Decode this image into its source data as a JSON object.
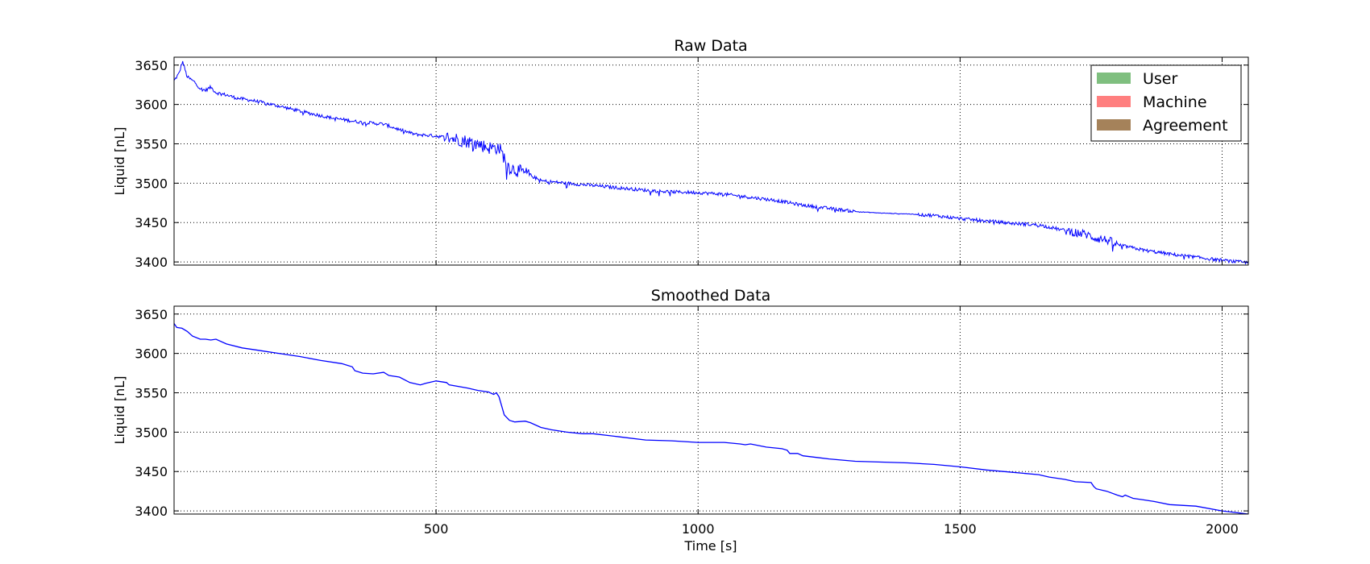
{
  "chart_data": [
    {
      "type": "line",
      "title": "Raw Data",
      "xlabel": "",
      "ylabel": "Liquid [nL]",
      "xlim": [
        0,
        2050
      ],
      "ylim": [
        3396,
        3660
      ],
      "x_ticks": [
        500,
        1000,
        1500,
        2000
      ],
      "y_ticks": [
        3400,
        3450,
        3500,
        3550,
        3600,
        3650
      ],
      "y_tick_labels": [
        "3400",
        "3450",
        "3500",
        "3550",
        "3600",
        "3650"
      ],
      "x_tick_labels_shown": false,
      "grid": true,
      "line_color": "#0000ff",
      "noise": "high",
      "legend": {
        "placement": "top-right",
        "entries": [
          {
            "label": "User",
            "color": "#7fbf7f"
          },
          {
            "label": "Machine",
            "color": "#ff7f7f"
          },
          {
            "label": "Agreement",
            "color": "#a5825a"
          }
        ]
      },
      "series": [
        {
          "x": [
            0,
            10,
            16,
            25,
            40,
            50,
            60,
            70,
            80,
            100,
            120,
            150,
            200,
            250,
            300,
            350,
            400,
            430,
            460,
            500,
            540,
            560,
            580,
            600,
            620,
            640,
            660,
            680,
            700,
            750,
            800,
            850,
            900,
            950,
            1000,
            1050,
            1100,
            1150,
            1200,
            1250,
            1300,
            1350,
            1400,
            1450,
            1500,
            1550,
            1600,
            1650,
            1700,
            1740,
            1760,
            1780,
            1800,
            1850,
            1900,
            1950,
            2000,
            2050
          ],
          "values": [
            3630,
            3640,
            3655,
            3635,
            3628,
            3620,
            3618,
            3622,
            3615,
            3612,
            3608,
            3605,
            3598,
            3590,
            3583,
            3578,
            3575,
            3568,
            3562,
            3560,
            3556,
            3553,
            3550,
            3545,
            3545,
            3520,
            3515,
            3510,
            3503,
            3500,
            3497,
            3494,
            3491,
            3489,
            3488,
            3486,
            3482,
            3478,
            3472,
            3468,
            3464,
            3462,
            3461,
            3459,
            3455,
            3452,
            3449,
            3447,
            3440,
            3435,
            3430,
            3428,
            3422,
            3415,
            3410,
            3406,
            3402,
            3399
          ]
        }
      ]
    },
    {
      "type": "line",
      "title": "Smoothed Data",
      "xlabel": "Time [s]",
      "ylabel": "Liquid [nL]",
      "xlim": [
        0,
        2050
      ],
      "ylim": [
        3396,
        3660
      ],
      "x_ticks": [
        500,
        1000,
        1500,
        2000
      ],
      "x_tick_labels": [
        "500",
        "1000",
        "1500",
        "2000"
      ],
      "y_ticks": [
        3400,
        3450,
        3500,
        3550,
        3600,
        3650
      ],
      "y_tick_labels": [
        "3400",
        "3450",
        "3500",
        "3550",
        "3600",
        "3650"
      ],
      "grid": true,
      "line_color": "#0000ff",
      "series": [
        {
          "x": [
            0,
            5,
            15,
            25,
            35,
            50,
            60,
            70,
            80,
            100,
            130,
            160,
            200,
            240,
            280,
            320,
            340,
            345,
            360,
            380,
            400,
            410,
            430,
            450,
            470,
            480,
            500,
            520,
            525,
            560,
            580,
            600,
            610,
            615,
            620,
            630,
            640,
            650,
            670,
            680,
            700,
            720,
            750,
            780,
            800,
            850,
            900,
            950,
            1000,
            1050,
            1080,
            1090,
            1100,
            1130,
            1160,
            1170,
            1175,
            1190,
            1200,
            1250,
            1300,
            1350,
            1400,
            1450,
            1500,
            1550,
            1600,
            1650,
            1670,
            1700,
            1720,
            1750,
            1755,
            1760,
            1780,
            1800,
            1810,
            1815,
            1830,
            1850,
            1870,
            1900,
            1950,
            2000,
            2050
          ],
          "values": [
            3638,
            3633,
            3632,
            3628,
            3622,
            3618,
            3618,
            3617,
            3618,
            3612,
            3607,
            3604,
            3600,
            3596,
            3591,
            3587,
            3583,
            3578,
            3575,
            3574,
            3576,
            3572,
            3570,
            3563,
            3560,
            3562,
            3565,
            3563,
            3560,
            3556,
            3553,
            3551,
            3548,
            3550,
            3545,
            3522,
            3515,
            3513,
            3514,
            3512,
            3506,
            3503,
            3500,
            3498,
            3498,
            3494,
            3490,
            3489,
            3487,
            3487,
            3485,
            3484,
            3485,
            3481,
            3479,
            3477,
            3473,
            3473,
            3470,
            3466,
            3463,
            3462,
            3461,
            3459,
            3456,
            3452,
            3449,
            3446,
            3443,
            3440,
            3437,
            3436,
            3431,
            3428,
            3425,
            3420,
            3418,
            3420,
            3416,
            3414,
            3412,
            3408,
            3406,
            3400,
            3396
          ]
        }
      ]
    }
  ]
}
